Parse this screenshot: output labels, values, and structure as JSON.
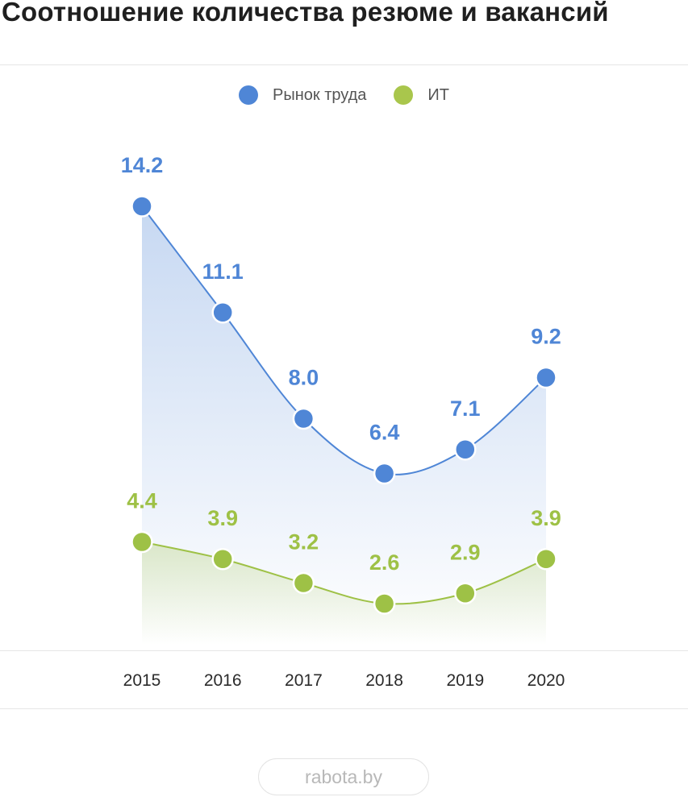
{
  "chart_data": {
    "type": "line",
    "title": "Соотношение количества резюме и вакансий",
    "x": [
      "2015",
      "2016",
      "2017",
      "2018",
      "2019",
      "2020"
    ],
    "series": [
      {
        "name": "Рынок труда",
        "color": "#4f86d6",
        "values": [
          14.2,
          11.1,
          8.0,
          6.4,
          7.1,
          9.2
        ],
        "labels": [
          "14.2",
          "11.1",
          "8.0",
          "6.4",
          "7.1",
          "9.2"
        ]
      },
      {
        "name": "ИТ",
        "color": "#9ec146",
        "values": [
          4.4,
          3.9,
          3.2,
          2.6,
          2.9,
          3.9
        ],
        "labels": [
          "4.4",
          "3.9",
          "3.2",
          "2.6",
          "2.9",
          "3.9"
        ]
      }
    ],
    "ylim": [
      1.4,
      14.2
    ],
    "grid": false,
    "legend": "top-center"
  },
  "source": "rabota.by"
}
